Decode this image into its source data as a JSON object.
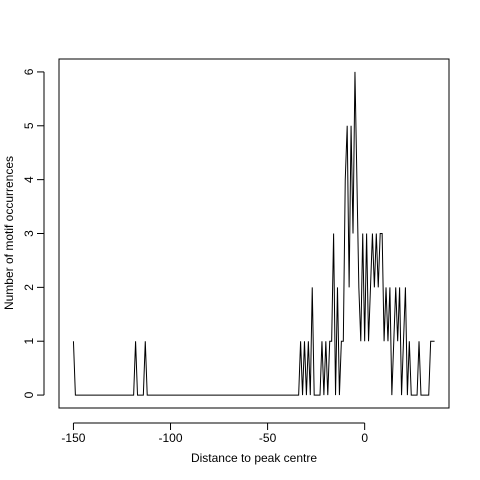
{
  "chart_data": {
    "type": "line",
    "xlabel": "Distance to peak centre",
    "ylabel": "Number of motif occurrences",
    "x": [
      -150,
      -149,
      -148,
      -147,
      -146,
      -145,
      -144,
      -143,
      -142,
      -141,
      -140,
      -139,
      -138,
      -137,
      -136,
      -135,
      -134,
      -133,
      -132,
      -131,
      -130,
      -129,
      -128,
      -127,
      -126,
      -125,
      -124,
      -123,
      -122,
      -121,
      -120,
      -119,
      -118,
      -117,
      -116,
      -115,
      -114,
      -113,
      -112,
      -111,
      -110,
      -109,
      -108,
      -107,
      -106,
      -105,
      -104,
      -103,
      -102,
      -101,
      -100,
      -99,
      -98,
      -97,
      -96,
      -95,
      -94,
      -93,
      -92,
      -91,
      -90,
      -89,
      -88,
      -87,
      -86,
      -85,
      -84,
      -83,
      -82,
      -81,
      -80,
      -79,
      -78,
      -77,
      -76,
      -75,
      -74,
      -73,
      -72,
      -71,
      -70,
      -69,
      -68,
      -67,
      -66,
      -65,
      -64,
      -63,
      -62,
      -61,
      -60,
      -59,
      -58,
      -57,
      -56,
      -55,
      -54,
      -53,
      -52,
      -51,
      -50,
      -49,
      -48,
      -47,
      -46,
      -45,
      -44,
      -43,
      -42,
      -41,
      -40,
      -39,
      -38,
      -37,
      -36,
      -35,
      -34,
      -33,
      -32,
      -31,
      -30,
      -29,
      -28,
      -27,
      -26,
      -25,
      -24,
      -23,
      -22,
      -21,
      -20,
      -19,
      -18,
      -17,
      -16,
      -15,
      -14,
      -13,
      -12,
      -11,
      -10,
      -9,
      -8,
      -7,
      -6,
      -5,
      -4,
      -3,
      -2,
      -1,
      0,
      1,
      2,
      3,
      4,
      5,
      6,
      7,
      8,
      9,
      10,
      11,
      12,
      13,
      14,
      15,
      16,
      17,
      18,
      19,
      20,
      21,
      22,
      23,
      24,
      25,
      26,
      27,
      28,
      29,
      30,
      31,
      32,
      33,
      34,
      35,
      36
    ],
    "values": [
      1,
      0,
      0,
      0,
      0,
      0,
      0,
      0,
      0,
      0,
      0,
      0,
      0,
      0,
      0,
      0,
      0,
      0,
      0,
      0,
      0,
      0,
      0,
      0,
      0,
      0,
      0,
      0,
      0,
      0,
      0,
      0,
      1,
      0,
      0,
      0,
      0,
      1,
      0,
      0,
      0,
      0,
      0,
      0,
      0,
      0,
      0,
      0,
      0,
      0,
      0,
      0,
      0,
      0,
      0,
      0,
      0,
      0,
      0,
      0,
      0,
      0,
      0,
      0,
      0,
      0,
      0,
      0,
      0,
      0,
      0,
      0,
      0,
      0,
      0,
      0,
      0,
      0,
      0,
      0,
      0,
      0,
      0,
      0,
      0,
      0,
      0,
      0,
      0,
      0,
      0,
      0,
      0,
      0,
      0,
      0,
      0,
      0,
      0,
      0,
      0,
      0,
      0,
      0,
      0,
      0,
      0,
      0,
      0,
      0,
      0,
      0,
      0,
      0,
      0,
      0,
      0,
      1,
      0,
      1,
      0,
      1,
      0,
      2,
      0,
      0,
      0,
      0,
      1,
      0,
      1,
      0,
      1,
      1,
      3,
      0,
      2,
      0,
      1,
      1,
      4,
      5,
      2,
      5,
      3,
      6,
      4,
      2,
      1,
      3,
      1,
      3,
      1,
      2,
      3,
      2,
      3,
      2,
      3,
      3,
      1,
      2,
      1,
      2,
      0,
      1,
      2,
      1,
      2,
      0,
      1,
      2,
      0,
      1,
      0,
      0,
      0,
      0,
      1,
      0,
      0,
      0,
      0,
      0,
      1,
      1,
      1
    ],
    "color": "#000000",
    "xlim": [
      -157.44,
      43.44
    ],
    "ylim": [
      -0.24,
      6.24
    ],
    "xticks": [
      -150,
      -100,
      -50,
      0
    ],
    "yticks": [
      0,
      1,
      2,
      3,
      4,
      5,
      6
    ]
  }
}
